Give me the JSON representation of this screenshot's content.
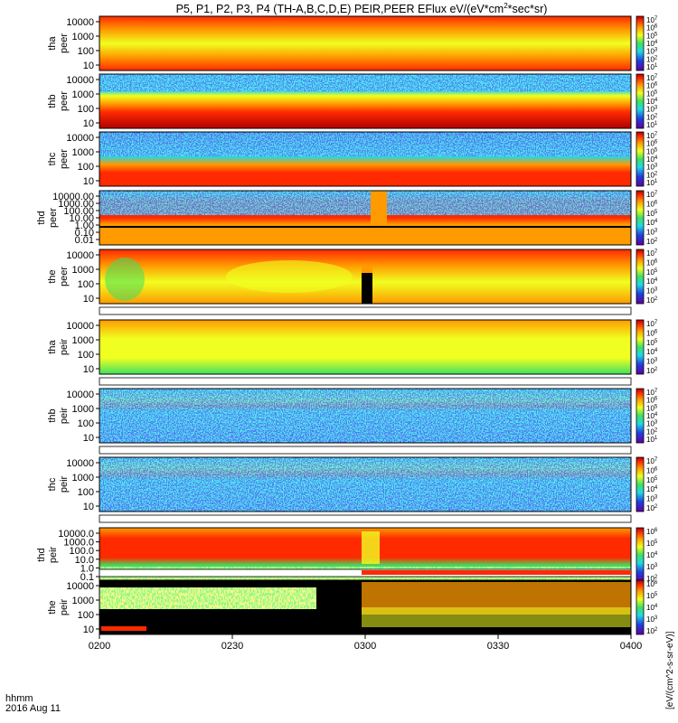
{
  "chart_data": {
    "type": "heatmap",
    "title_prefix": "P5, P1, P2, P3, P4 (TH-A,B,C,D,E) PEIR,PEER EFlux eV/(eV*cm",
    "title_sup": "2",
    "title_suffix": "*sec*sr)",
    "x_ticks": [
      "0200",
      "0230",
      "0300",
      "0330",
      "0400"
    ],
    "x_range": [
      "0200",
      "0400"
    ],
    "x_caption": "hhmm",
    "date": "2016 Aug 11",
    "colorbar_label": "[eV/(cm^2-s-sr-eV)]",
    "colorbar_ticks": [
      "10^2",
      "10^3",
      "10^4",
      "10^5",
      "10^6",
      "10^7"
    ],
    "panels": [
      {
        "probe": "tha",
        "species": "peer",
        "y_ticks": [
          "10000",
          "1000",
          "100",
          "10"
        ],
        "y_range": [
          10,
          20000
        ],
        "log_y": true,
        "colorbar_ticks": [
          "10^1",
          "10^2",
          "10^3",
          "10^4",
          "10^5",
          "10^6",
          "10^7"
        ]
      },
      {
        "probe": "thb",
        "species": "peer",
        "y_ticks": [
          "10000",
          "1000",
          "100",
          "10"
        ],
        "y_range": [
          10,
          20000
        ],
        "log_y": true,
        "colorbar_ticks": [
          "10^1",
          "10^2",
          "10^3",
          "10^4",
          "10^5",
          "10^6",
          "10^7"
        ]
      },
      {
        "probe": "thc",
        "species": "peer",
        "y_ticks": [
          "10000",
          "1000",
          "100",
          "10"
        ],
        "y_range": [
          10,
          20000
        ],
        "log_y": true,
        "colorbar_ticks": [
          "10^1",
          "10^2",
          "10^3",
          "10^4",
          "10^5",
          "10^6",
          "10^7"
        ]
      },
      {
        "probe": "thd",
        "species": "peer",
        "y_ticks": [
          "10000.00",
          "1000.00",
          "100.00",
          "10.00",
          "1.00",
          "0.10",
          "0.01"
        ],
        "y_range": [
          0.01,
          20000
        ],
        "log_y": true,
        "colorbar_ticks": [
          "10^2",
          "10^3",
          "10^4",
          "10^5",
          "10^6",
          "10^7"
        ]
      },
      {
        "probe": "the",
        "species": "peer",
        "y_ticks": [
          "10000",
          "1000",
          "100",
          "10"
        ],
        "y_range": [
          5,
          20000
        ],
        "log_y": true,
        "colorbar_ticks": [
          "10^2",
          "10^3",
          "10^4",
          "10^5",
          "10^6",
          "10^7"
        ]
      },
      {
        "probe": "tha",
        "species": "peir",
        "y_ticks": [
          "10000",
          "1000",
          "100",
          "10"
        ],
        "y_range": [
          5,
          20000
        ],
        "log_y": true,
        "colorbar_ticks": [
          "10^2",
          "10^3",
          "10^4",
          "10^5",
          "10^6",
          "10^7"
        ]
      },
      {
        "probe": "thb",
        "species": "peir",
        "y_ticks": [
          "10000",
          "1000",
          "100",
          "10"
        ],
        "y_range": [
          10,
          20000
        ],
        "log_y": true,
        "colorbar_ticks": [
          "10^1",
          "10^2",
          "10^3",
          "10^4",
          "10^5",
          "10^6",
          "10^7"
        ]
      },
      {
        "probe": "thc",
        "species": "peir",
        "y_ticks": [
          "10000",
          "1000",
          "100",
          "10"
        ],
        "y_range": [
          5,
          20000
        ],
        "log_y": true,
        "colorbar_ticks": [
          "10^2",
          "10^3",
          "10^4",
          "10^5",
          "10^6",
          "10^7"
        ]
      },
      {
        "probe": "thd",
        "species": "peir",
        "y_ticks": [
          "10000.0",
          "1000.0",
          "100.0",
          "10.0",
          "1.0",
          "0.1"
        ],
        "y_range": [
          0.1,
          20000
        ],
        "log_y": true,
        "colorbar_ticks": [
          "10^2",
          "10^3",
          "10^4",
          "10^5",
          "10^6"
        ]
      },
      {
        "probe": "the",
        "species": "peir",
        "y_ticks": [
          "10000",
          "1000",
          "100",
          "10"
        ],
        "y_range": [
          5,
          20000
        ],
        "log_y": true,
        "colorbar_ticks": [
          "10^2",
          "10^3",
          "10^4",
          "10^5",
          "10^6"
        ]
      }
    ],
    "colors": {
      "dark_red": "#b00000",
      "red": "#ff2a00",
      "orange": "#ff9a00",
      "yellow": "#f0ff20",
      "green": "#40e060",
      "cyan": "#20d8e8",
      "blue": "#2040e0",
      "violet": "#6000a0",
      "black": "#000000"
    }
  }
}
